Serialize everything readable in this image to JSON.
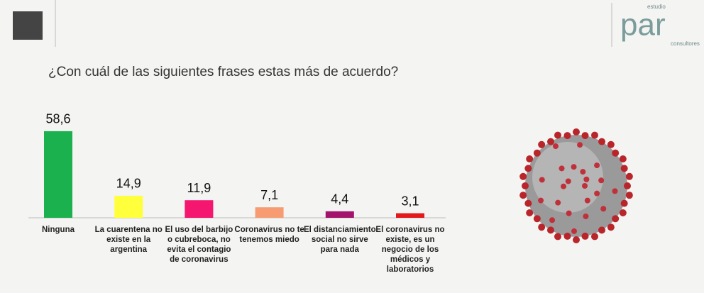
{
  "logo": {
    "top": "estudio",
    "main": "par",
    "bottom": "consultores"
  },
  "chart_data": {
    "type": "bar",
    "title": "¿Con cuál de las siguientes frases estas más de acuerdo?",
    "categories": [
      "Ninguna",
      "La cuarentena no existe en la argentina",
      "El uso del barbijo o cubreboca, no evita el contagio de coronavirus",
      "Coronavirus no te tenemos miedo",
      "El distanciamiento social no sirve para nada",
      "El coronavirus no existe, es un negocio de los médicos y laboratorios"
    ],
    "values": [
      58.6,
      14.9,
      11.9,
      7.1,
      4.4,
      3.1
    ],
    "value_labels": [
      "58,6",
      "14,9",
      "11,9",
      "7,1",
      "4,4",
      "3,1"
    ],
    "colors": [
      "#1cb14f",
      "#ffff3c",
      "#f5166f",
      "#f79c72",
      "#a3146d",
      "#e3191c"
    ],
    "ylim": [
      0,
      60
    ]
  }
}
